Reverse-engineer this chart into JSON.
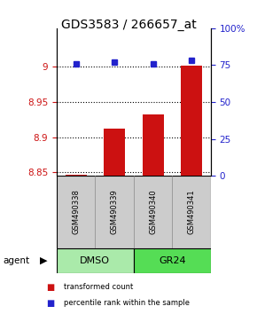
{
  "title": "GDS3583 / 266657_at",
  "samples": [
    "GSM490338",
    "GSM490339",
    "GSM490340",
    "GSM490341"
  ],
  "bar_values": [
    8.847,
    8.912,
    8.932,
    9.002
  ],
  "dot_values": [
    76,
    77,
    76,
    78
  ],
  "ylim_left": [
    8.845,
    9.055
  ],
  "ylim_right": [
    0,
    100
  ],
  "yticks_left": [
    8.85,
    8.9,
    8.95,
    9.0
  ],
  "yticks_right": [
    0,
    25,
    50,
    75,
    100
  ],
  "ytick_labels_left": [
    "8.85",
    "8.9",
    "8.95",
    "9"
  ],
  "ytick_labels_right": [
    "0",
    "25",
    "50",
    "75",
    "100%"
  ],
  "bar_color": "#cc1111",
  "dot_color": "#2222cc",
  "bar_bottom": 8.845,
  "bar_width": 0.55,
  "agent_groups": [
    {
      "label": "DMSO",
      "color": "#aaeaaa"
    },
    {
      "label": "GR24",
      "color": "#55dd55"
    }
  ],
  "agent_label": "agent",
  "legend_bar_label": "transformed count",
  "legend_dot_label": "percentile rank within the sample",
  "x_positions": [
    1,
    2,
    3,
    4
  ],
  "sample_box_color": "#cccccc",
  "title_fontsize": 10,
  "tick_fontsize": 7.5,
  "label_fontsize": 7
}
